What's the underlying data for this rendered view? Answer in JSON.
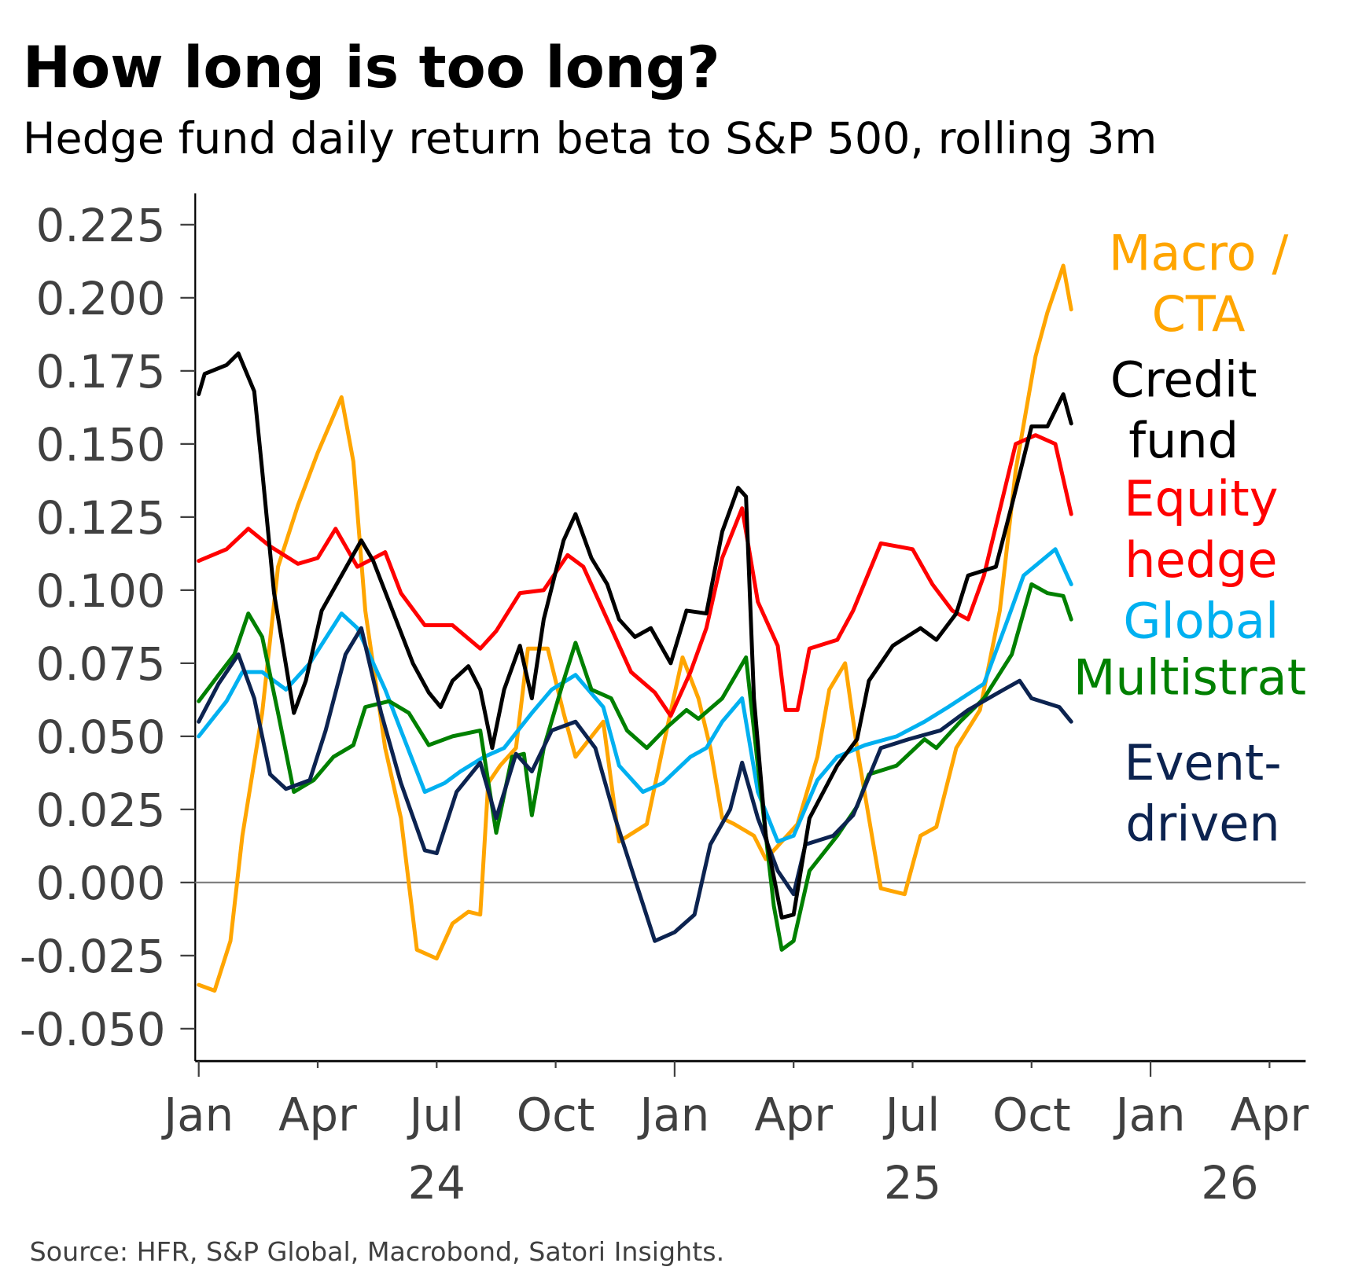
{
  "title": "How long is too long?",
  "subtitle": "Hedge fund daily return beta to S&P 500, rolling 3m",
  "source": "Source: HFR, S&P Global, Macrobond, Satori Insights.",
  "chart_data": {
    "type": "line",
    "x_unit": "months since Jan 2024",
    "xlim": [
      0,
      27.9
    ],
    "ylim": [
      -0.061,
      0.236
    ],
    "yticks": [
      -0.05,
      -0.025,
      0,
      0.025,
      0.05,
      0.075,
      0.1,
      0.125,
      0.15,
      0.175,
      0.2,
      0.225
    ],
    "ytick_labels": [
      "-0.050",
      "-0.025",
      "0.000",
      "0.025",
      "0.050",
      "0.075",
      "0.100",
      "0.125",
      "0.150",
      "0.175",
      "0.200",
      "0.225"
    ],
    "xticks": [
      0,
      3,
      6,
      9,
      12,
      15,
      18,
      21,
      24,
      27
    ],
    "xtick_labels": [
      "Jan",
      "Apr",
      "Jul",
      "Oct",
      "Jan",
      "Apr",
      "Jul",
      "Oct",
      "Jan",
      "Apr"
    ],
    "year_labels": [
      {
        "x": 6,
        "label": "24"
      },
      {
        "x": 18,
        "label": "25"
      },
      {
        "x": 26,
        "label": "26"
      }
    ],
    "series": [
      {
        "name": "Macro / CTA",
        "label_lines": [
          "Macro /",
          "CTA"
        ],
        "color": "#FFA500",
        "points": [
          [
            0,
            -0.035
          ],
          [
            0.4,
            -0.037
          ],
          [
            0.8,
            -0.02
          ],
          [
            1.1,
            0.016
          ],
          [
            1.6,
            0.058
          ],
          [
            2.0,
            0.108
          ],
          [
            2.5,
            0.129
          ],
          [
            3.0,
            0.147
          ],
          [
            3.6,
            0.166
          ],
          [
            3.9,
            0.144
          ],
          [
            4.2,
            0.093
          ],
          [
            4.7,
            0.046
          ],
          [
            5.1,
            0.022
          ],
          [
            5.5,
            -0.023
          ],
          [
            6.0,
            -0.026
          ],
          [
            6.4,
            -0.014
          ],
          [
            6.8,
            -0.01
          ],
          [
            7.1,
            -0.011
          ],
          [
            7.3,
            0.034
          ],
          [
            7.6,
            0.04
          ],
          [
            8.0,
            0.046
          ],
          [
            8.3,
            0.08
          ],
          [
            8.8,
            0.08
          ],
          [
            9.2,
            0.058
          ],
          [
            9.5,
            0.043
          ],
          [
            10.2,
            0.055
          ],
          [
            10.6,
            0.014
          ],
          [
            11.3,
            0.02
          ],
          [
            11.7,
            0.046
          ],
          [
            12.2,
            0.077
          ],
          [
            12.6,
            0.063
          ],
          [
            12.9,
            0.046
          ],
          [
            13.2,
            0.022
          ],
          [
            13.5,
            0.02
          ],
          [
            14.0,
            0.016
          ],
          [
            14.3,
            0.008
          ],
          [
            14.7,
            0.014
          ],
          [
            15.1,
            0.02
          ],
          [
            15.6,
            0.043
          ],
          [
            15.9,
            0.066
          ],
          [
            16.3,
            0.075
          ],
          [
            16.6,
            0.046
          ],
          [
            17.2,
            -0.002
          ],
          [
            17.8,
            -0.004
          ],
          [
            18.2,
            0.016
          ],
          [
            18.6,
            0.019
          ],
          [
            19.1,
            0.046
          ],
          [
            19.7,
            0.059
          ],
          [
            20.2,
            0.093
          ],
          [
            20.6,
            0.141
          ],
          [
            21.1,
            0.18
          ],
          [
            21.4,
            0.195
          ],
          [
            21.8,
            0.211
          ],
          [
            22.0,
            0.196
          ]
        ]
      },
      {
        "name": "Credit fund",
        "label_lines": [
          "Credit",
          "fund"
        ],
        "color": "#000000",
        "points": [
          [
            0,
            0.167
          ],
          [
            0.15,
            0.174
          ],
          [
            0.7,
            0.177
          ],
          [
            1.0,
            0.181
          ],
          [
            1.4,
            0.168
          ],
          [
            1.6,
            0.141
          ],
          [
            1.9,
            0.099
          ],
          [
            2.4,
            0.058
          ],
          [
            2.7,
            0.069
          ],
          [
            3.1,
            0.093
          ],
          [
            3.6,
            0.105
          ],
          [
            4.1,
            0.117
          ],
          [
            4.4,
            0.11
          ],
          [
            5.0,
            0.089
          ],
          [
            5.4,
            0.075
          ],
          [
            5.8,
            0.065
          ],
          [
            6.1,
            0.06
          ],
          [
            6.4,
            0.069
          ],
          [
            6.8,
            0.074
          ],
          [
            7.1,
            0.066
          ],
          [
            7.4,
            0.046
          ],
          [
            7.7,
            0.066
          ],
          [
            8.1,
            0.081
          ],
          [
            8.4,
            0.063
          ],
          [
            8.7,
            0.09
          ],
          [
            9.2,
            0.117
          ],
          [
            9.5,
            0.126
          ],
          [
            9.9,
            0.111
          ],
          [
            10.3,
            0.102
          ],
          [
            10.6,
            0.09
          ],
          [
            11.0,
            0.084
          ],
          [
            11.4,
            0.087
          ],
          [
            11.9,
            0.075
          ],
          [
            12.3,
            0.093
          ],
          [
            12.8,
            0.092
          ],
          [
            13.2,
            0.12
          ],
          [
            13.6,
            0.135
          ],
          [
            13.8,
            0.132
          ],
          [
            14.0,
            0.063
          ],
          [
            14.3,
            0.016
          ],
          [
            14.7,
            -0.012
          ],
          [
            15.0,
            -0.011
          ],
          [
            15.4,
            0.022
          ],
          [
            16.1,
            0.04
          ],
          [
            16.6,
            0.049
          ],
          [
            16.9,
            0.069
          ],
          [
            17.5,
            0.081
          ],
          [
            18.2,
            0.087
          ],
          [
            18.6,
            0.083
          ],
          [
            19.1,
            0.092
          ],
          [
            19.4,
            0.105
          ],
          [
            20.1,
            0.108
          ],
          [
            20.5,
            0.129
          ],
          [
            21.0,
            0.156
          ],
          [
            21.4,
            0.156
          ],
          [
            21.8,
            0.167
          ],
          [
            22.0,
            0.157
          ]
        ]
      },
      {
        "name": "Equity hedge",
        "label_lines": [
          "Equity",
          "hedge"
        ],
        "color": "#FF0000",
        "points": [
          [
            0,
            0.11
          ],
          [
            0.7,
            0.114
          ],
          [
            1.25,
            0.121
          ],
          [
            1.8,
            0.115
          ],
          [
            2.5,
            0.109
          ],
          [
            3.0,
            0.111
          ],
          [
            3.45,
            0.121
          ],
          [
            4.0,
            0.108
          ],
          [
            4.7,
            0.113
          ],
          [
            5.1,
            0.099
          ],
          [
            5.7,
            0.088
          ],
          [
            6.4,
            0.088
          ],
          [
            7.1,
            0.08
          ],
          [
            7.5,
            0.086
          ],
          [
            8.1,
            0.099
          ],
          [
            8.7,
            0.1
          ],
          [
            9.3,
            0.112
          ],
          [
            9.7,
            0.108
          ],
          [
            10.4,
            0.087
          ],
          [
            10.9,
            0.072
          ],
          [
            11.5,
            0.065
          ],
          [
            11.9,
            0.057
          ],
          [
            12.4,
            0.072
          ],
          [
            12.8,
            0.087
          ],
          [
            13.2,
            0.111
          ],
          [
            13.7,
            0.128
          ],
          [
            14.1,
            0.096
          ],
          [
            14.6,
            0.081
          ],
          [
            14.8,
            0.059
          ],
          [
            15.1,
            0.059
          ],
          [
            15.4,
            0.08
          ],
          [
            16.1,
            0.083
          ],
          [
            16.5,
            0.093
          ],
          [
            17.2,
            0.116
          ],
          [
            18.0,
            0.114
          ],
          [
            18.5,
            0.102
          ],
          [
            19.0,
            0.093
          ],
          [
            19.4,
            0.09
          ],
          [
            19.8,
            0.105
          ],
          [
            20.6,
            0.15
          ],
          [
            21.1,
            0.153
          ],
          [
            21.6,
            0.15
          ],
          [
            22.0,
            0.126
          ]
        ]
      },
      {
        "name": "Global",
        "label_lines": [
          "Global"
        ],
        "color": "#00B0F0",
        "points": [
          [
            0,
            0.05
          ],
          [
            0.7,
            0.062
          ],
          [
            1.1,
            0.072
          ],
          [
            1.6,
            0.072
          ],
          [
            2.2,
            0.066
          ],
          [
            2.8,
            0.075
          ],
          [
            3.6,
            0.092
          ],
          [
            4.0,
            0.087
          ],
          [
            4.7,
            0.066
          ],
          [
            5.1,
            0.052
          ],
          [
            5.7,
            0.031
          ],
          [
            6.2,
            0.034
          ],
          [
            6.6,
            0.038
          ],
          [
            7.2,
            0.043
          ],
          [
            7.7,
            0.046
          ],
          [
            8.4,
            0.058
          ],
          [
            8.9,
            0.066
          ],
          [
            9.5,
            0.071
          ],
          [
            10.2,
            0.06
          ],
          [
            10.6,
            0.04
          ],
          [
            11.2,
            0.031
          ],
          [
            11.7,
            0.034
          ],
          [
            12.4,
            0.043
          ],
          [
            12.8,
            0.046
          ],
          [
            13.2,
            0.055
          ],
          [
            13.7,
            0.063
          ],
          [
            14.1,
            0.031
          ],
          [
            14.6,
            0.014
          ],
          [
            15.0,
            0.016
          ],
          [
            15.6,
            0.035
          ],
          [
            16.1,
            0.043
          ],
          [
            16.8,
            0.047
          ],
          [
            17.6,
            0.05
          ],
          [
            18.3,
            0.055
          ],
          [
            18.9,
            0.06
          ],
          [
            19.8,
            0.068
          ],
          [
            20.4,
            0.09
          ],
          [
            20.8,
            0.105
          ],
          [
            21.6,
            0.114
          ],
          [
            22.0,
            0.102
          ]
        ]
      },
      {
        "name": "Multistrat",
        "label_lines": [
          "Multistrat"
        ],
        "color": "#008000",
        "points": [
          [
            0,
            0.062
          ],
          [
            0.5,
            0.071
          ],
          [
            0.9,
            0.078
          ],
          [
            1.25,
            0.092
          ],
          [
            1.6,
            0.084
          ],
          [
            2.0,
            0.058
          ],
          [
            2.4,
            0.031
          ],
          [
            2.9,
            0.035
          ],
          [
            3.4,
            0.043
          ],
          [
            3.9,
            0.047
          ],
          [
            4.2,
            0.06
          ],
          [
            4.8,
            0.062
          ],
          [
            5.3,
            0.058
          ],
          [
            5.8,
            0.047
          ],
          [
            6.4,
            0.05
          ],
          [
            7.1,
            0.052
          ],
          [
            7.5,
            0.017
          ],
          [
            7.9,
            0.043
          ],
          [
            8.2,
            0.044
          ],
          [
            8.4,
            0.023
          ],
          [
            8.7,
            0.046
          ],
          [
            9.2,
            0.069
          ],
          [
            9.5,
            0.082
          ],
          [
            9.9,
            0.066
          ],
          [
            10.4,
            0.063
          ],
          [
            10.8,
            0.052
          ],
          [
            11.3,
            0.046
          ],
          [
            11.8,
            0.053
          ],
          [
            12.3,
            0.059
          ],
          [
            12.6,
            0.056
          ],
          [
            13.2,
            0.063
          ],
          [
            13.8,
            0.077
          ],
          [
            14.1,
            0.04
          ],
          [
            14.5,
            -0.008
          ],
          [
            14.7,
            -0.023
          ],
          [
            15.0,
            -0.02
          ],
          [
            15.4,
            0.004
          ],
          [
            16.1,
            0.016
          ],
          [
            16.6,
            0.026
          ],
          [
            16.9,
            0.037
          ],
          [
            17.6,
            0.04
          ],
          [
            18.3,
            0.049
          ],
          [
            18.6,
            0.046
          ],
          [
            19.2,
            0.055
          ],
          [
            19.8,
            0.063
          ],
          [
            20.5,
            0.078
          ],
          [
            21.0,
            0.102
          ],
          [
            21.4,
            0.099
          ],
          [
            21.8,
            0.098
          ],
          [
            22.0,
            0.09
          ]
        ]
      },
      {
        "name": "Event-driven",
        "label_lines": [
          "Event-",
          "driven"
        ],
        "color": "#0C2350",
        "points": [
          [
            0,
            0.055
          ],
          [
            0.5,
            0.068
          ],
          [
            1.0,
            0.078
          ],
          [
            1.4,
            0.063
          ],
          [
            1.8,
            0.037
          ],
          [
            2.2,
            0.032
          ],
          [
            2.8,
            0.035
          ],
          [
            3.2,
            0.052
          ],
          [
            3.7,
            0.078
          ],
          [
            4.1,
            0.087
          ],
          [
            4.6,
            0.058
          ],
          [
            5.1,
            0.034
          ],
          [
            5.7,
            0.011
          ],
          [
            6.0,
            0.01
          ],
          [
            6.5,
            0.031
          ],
          [
            7.1,
            0.041
          ],
          [
            7.5,
            0.022
          ],
          [
            8.0,
            0.044
          ],
          [
            8.4,
            0.038
          ],
          [
            8.9,
            0.052
          ],
          [
            9.5,
            0.055
          ],
          [
            10.0,
            0.046
          ],
          [
            10.5,
            0.022
          ],
          [
            11.0,
            0.001
          ],
          [
            11.5,
            -0.02
          ],
          [
            12.0,
            -0.017
          ],
          [
            12.5,
            -0.011
          ],
          [
            12.9,
            0.013
          ],
          [
            13.4,
            0.025
          ],
          [
            13.7,
            0.041
          ],
          [
            14.1,
            0.022
          ],
          [
            14.6,
            0.004
          ],
          [
            15.0,
            -0.004
          ],
          [
            15.3,
            0.013
          ],
          [
            16.0,
            0.016
          ],
          [
            16.5,
            0.023
          ],
          [
            17.2,
            0.046
          ],
          [
            17.9,
            0.049
          ],
          [
            18.7,
            0.052
          ],
          [
            19.4,
            0.059
          ],
          [
            20.3,
            0.066
          ],
          [
            20.7,
            0.069
          ],
          [
            21.0,
            0.063
          ],
          [
            21.7,
            0.06
          ],
          [
            22.0,
            0.055
          ]
        ]
      }
    ]
  }
}
